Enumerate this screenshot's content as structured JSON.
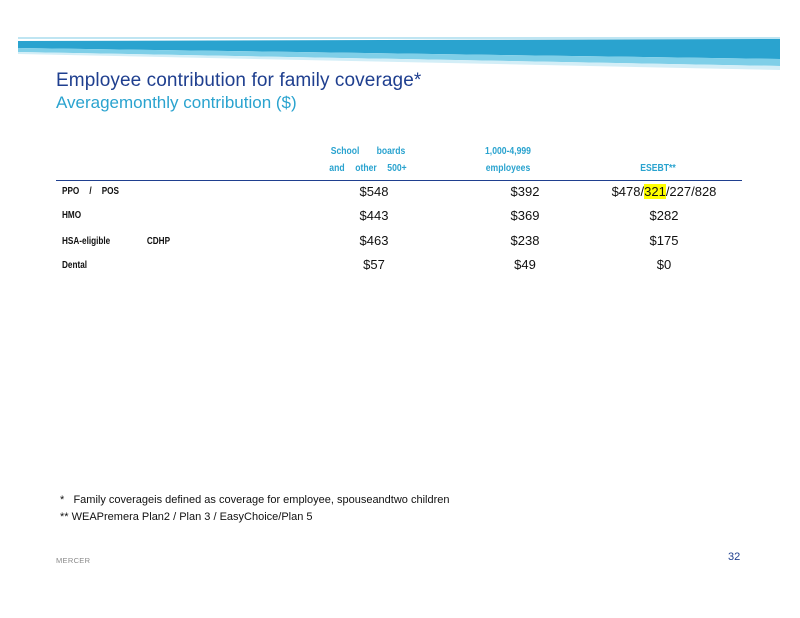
{
  "slide": {
    "title": "Employee contribution for family coverage*",
    "subtitle": "Averagemonthly contribution ($)"
  },
  "table": {
    "headers": [
      {
        "line1": "School boards",
        "line2": "and other 500+"
      },
      {
        "line1": "1,000-4,999",
        "line2": "employees"
      },
      {
        "line1": "",
        "line2": "ESEBT**"
      }
    ],
    "rows": [
      {
        "label": "PPO / POS",
        "values": [
          "$548",
          "$392"
        ],
        "esebt": {
          "before": "$478/",
          "highlight": "321",
          "after": "/227/828"
        }
      },
      {
        "label": "HMO",
        "values": [
          "$443",
          "$369"
        ],
        "esebt": {
          "before": "$282",
          "highlight": "",
          "after": ""
        }
      },
      {
        "label": "HSA-eligible CDHP",
        "values": [
          "$463",
          "$238"
        ],
        "esebt": {
          "before": "$175",
          "highlight": "",
          "after": ""
        }
      },
      {
        "label": "Dental",
        "values": [
          "$57",
          "$49"
        ],
        "esebt": {
          "before": "$0",
          "highlight": "",
          "after": ""
        }
      }
    ]
  },
  "footnotes": [
    "*   Family coverageis defined as coverage for employee, spouseandtwo children",
    "** WEAPremera Plan2 / Plan 3 / EasyChoice/Plan 5"
  ],
  "footer": {
    "brand": "MERCER",
    "page_number": "32"
  },
  "colors": {
    "navy": "#1f3f8f",
    "teal": "#2aa3cf",
    "highlight": "#ffff00"
  }
}
